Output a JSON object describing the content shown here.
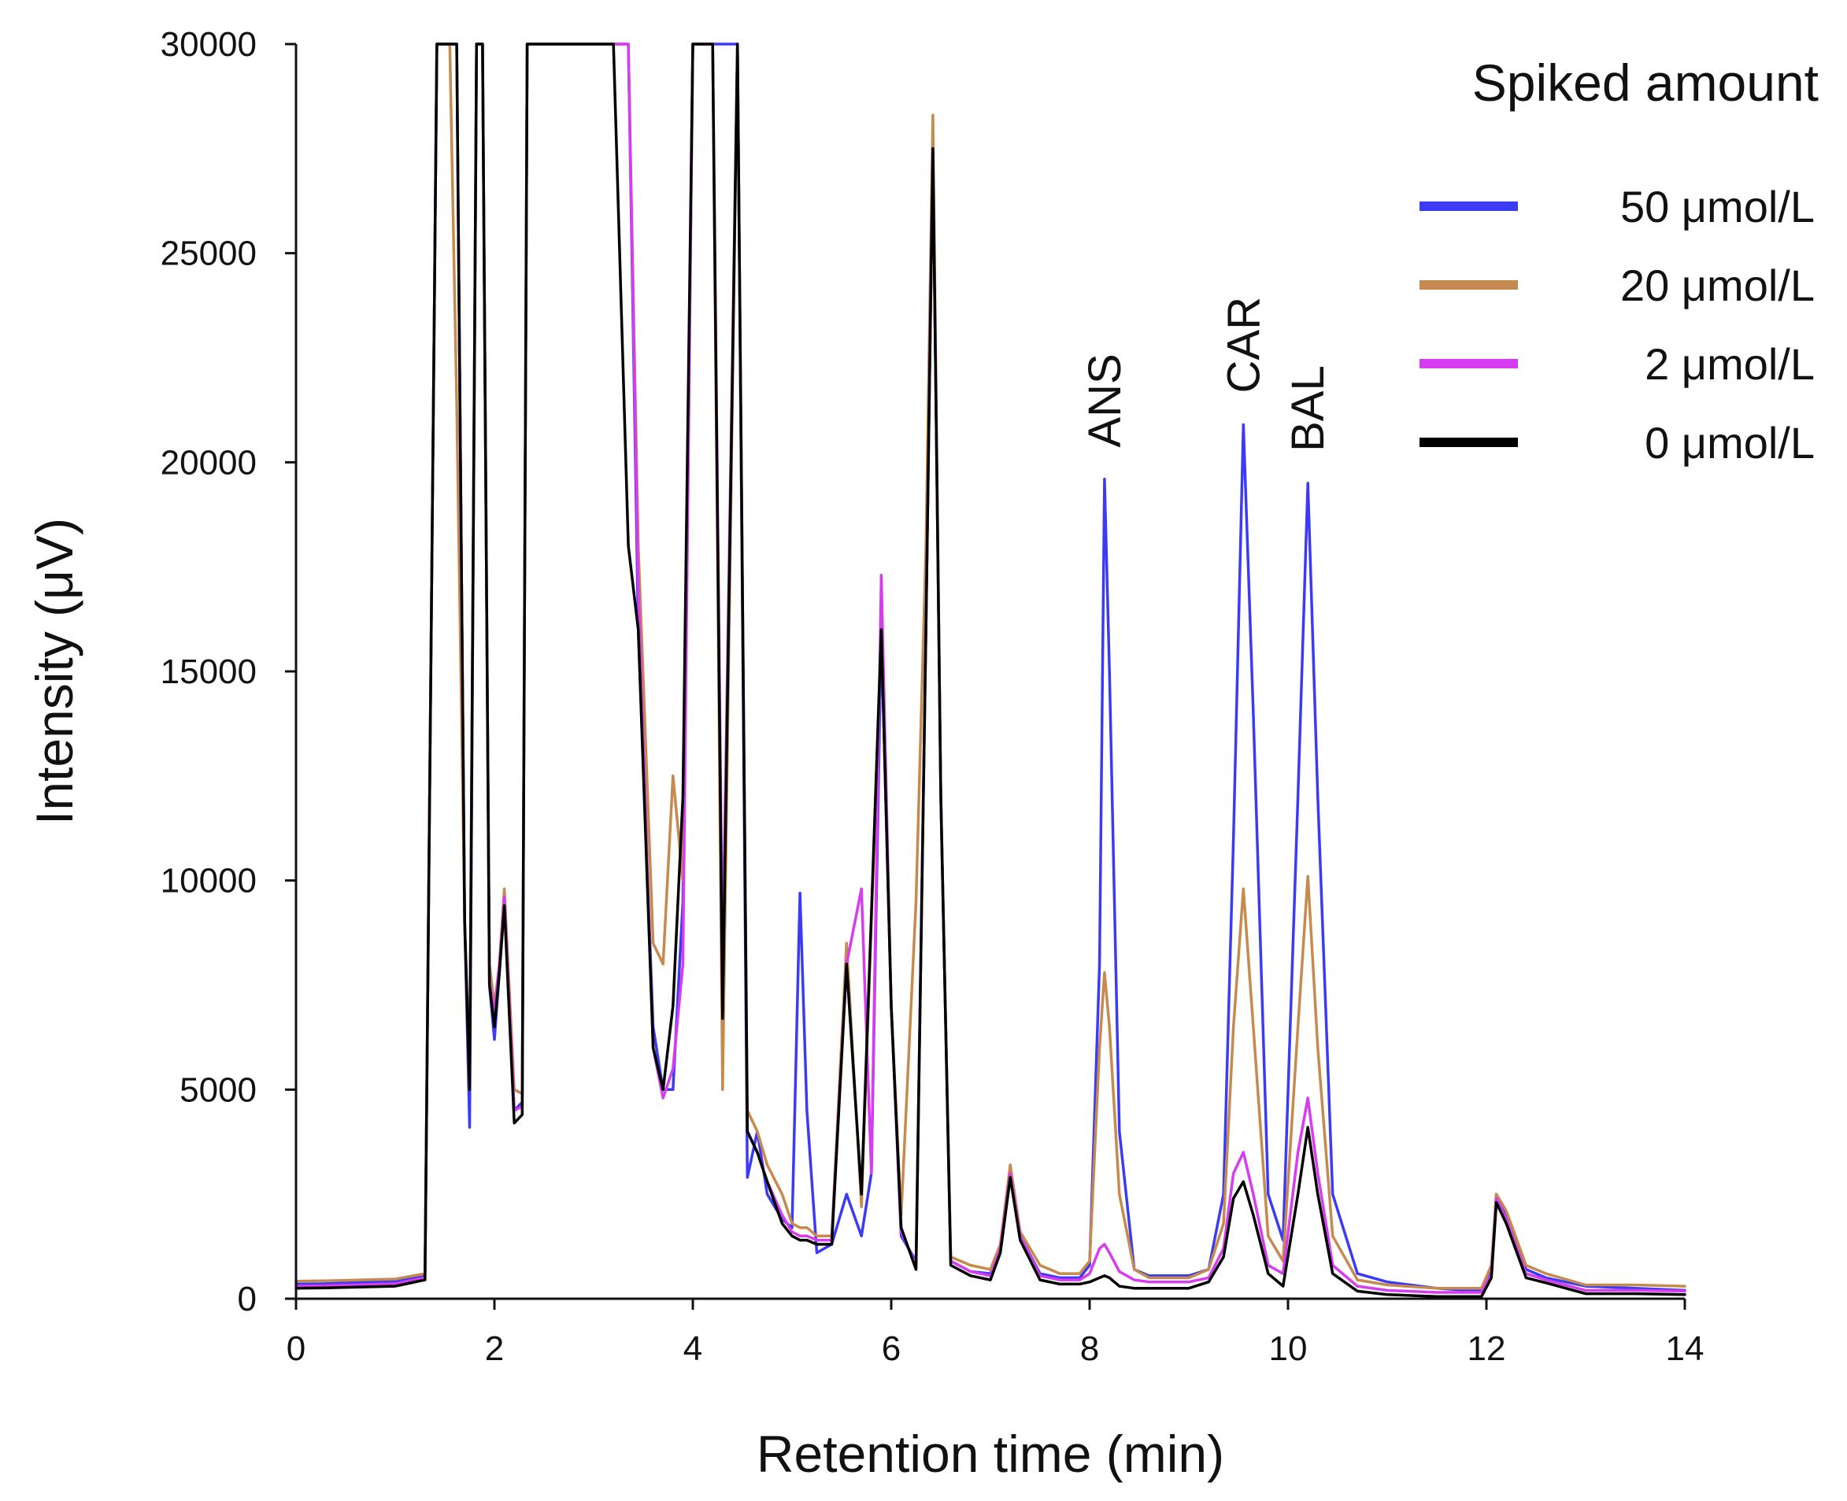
{
  "chart_data": {
    "type": "line",
    "xlabel": "Retention time (min)",
    "ylabel": "Intensity (μV)",
    "xlim": [
      0,
      14
    ],
    "ylim": [
      0,
      30000
    ],
    "xticks": [
      0,
      2,
      4,
      6,
      8,
      10,
      12,
      14
    ],
    "yticks": [
      0,
      5000,
      10000,
      15000,
      20000,
      25000,
      30000
    ],
    "grid": false,
    "legend": {
      "title": "Spiked amount",
      "placement": "top-right"
    },
    "annotations": [
      {
        "text": "ANS",
        "x": 8.15,
        "y": 19600
      },
      {
        "text": "CAR",
        "x": 9.55,
        "y": 20900
      },
      {
        "text": "BAL",
        "x": 10.2,
        "y": 19500
      }
    ],
    "series": [
      {
        "name": "50 μmol/L",
        "color": "#3b3bf5",
        "x": [
          0,
          0.3,
          1.0,
          1.3,
          1.42,
          1.55,
          1.62,
          1.7,
          1.75,
          1.82,
          1.88,
          1.95,
          2.0,
          2.05,
          2.1,
          2.2,
          2.28,
          2.33,
          2.38,
          2.45,
          3.1,
          3.2,
          3.35,
          3.45,
          3.6,
          3.7,
          3.8,
          3.9,
          4.0,
          4.1,
          4.2,
          4.3,
          4.45,
          4.55,
          4.65,
          4.75,
          4.9,
          5.0,
          5.08,
          5.15,
          5.25,
          5.4,
          5.55,
          5.7,
          5.8,
          5.9,
          6.0,
          6.1,
          6.25,
          6.35,
          6.42,
          6.5,
          6.6,
          6.8,
          7.0,
          7.1,
          7.2,
          7.3,
          7.5,
          7.7,
          7.9,
          8.0,
          8.1,
          8.15,
          8.2,
          8.3,
          8.45,
          8.6,
          8.8,
          9.0,
          9.2,
          9.35,
          9.45,
          9.55,
          9.65,
          9.8,
          9.95,
          10.1,
          10.2,
          10.3,
          10.45,
          10.7,
          11.0,
          11.5,
          11.8,
          11.95,
          12.05,
          12.1,
          12.2,
          12.4,
          12.6,
          13.0,
          13.5,
          14.0
        ],
        "y": [
          350,
          360,
          420,
          550,
          30000,
          30000,
          30000,
          9000,
          4100,
          30000,
          30000,
          7500,
          6200,
          7800,
          9500,
          4500,
          4700,
          30000,
          30000,
          30000,
          30000,
          30000,
          30000,
          16000,
          6500,
          5000,
          5000,
          9500,
          30000,
          30000,
          30000,
          30000,
          30000,
          2900,
          4000,
          2500,
          1900,
          1700,
          9700,
          4500,
          1100,
          1300,
          2500,
          1500,
          3000,
          16000,
          7000,
          1500,
          900,
          16000,
          27500,
          12000,
          900,
          650,
          600,
          1200,
          3100,
          1500,
          600,
          500,
          500,
          800,
          8000,
          19600,
          15000,
          4000,
          700,
          550,
          550,
          550,
          700,
          2500,
          11000,
          20900,
          14000,
          2500,
          1400,
          12000,
          19500,
          12000,
          2500,
          600,
          400,
          250,
          200,
          200,
          700,
          2500,
          2000,
          700,
          500,
          300,
          250,
          200
        ]
      },
      {
        "name": "20 μmol/L",
        "color": "#c68a4f",
        "x": [
          0,
          0.3,
          1.0,
          1.3,
          1.42,
          1.55,
          1.62,
          1.7,
          1.75,
          1.82,
          1.88,
          1.95,
          2.0,
          2.05,
          2.1,
          2.2,
          2.28,
          2.33,
          2.38,
          2.45,
          3.1,
          3.2,
          3.35,
          3.45,
          3.6,
          3.7,
          3.8,
          3.9,
          4.0,
          4.1,
          4.2,
          4.3,
          4.45,
          4.55,
          4.65,
          4.75,
          4.9,
          5.0,
          5.08,
          5.15,
          5.25,
          5.4,
          5.55,
          5.7,
          5.8,
          5.9,
          6.0,
          6.1,
          6.25,
          6.35,
          6.42,
          6.5,
          6.6,
          6.8,
          7.0,
          7.1,
          7.2,
          7.3,
          7.5,
          7.7,
          7.9,
          8.0,
          8.1,
          8.15,
          8.2,
          8.3,
          8.45,
          8.6,
          8.8,
          9.0,
          9.2,
          9.35,
          9.45,
          9.55,
          9.65,
          9.8,
          9.95,
          10.1,
          10.2,
          10.3,
          10.45,
          10.7,
          11.0,
          11.5,
          11.8,
          11.95,
          12.05,
          12.1,
          12.2,
          12.4,
          12.6,
          13.0,
          13.5,
          14.0
        ],
        "y": [
          420,
          430,
          470,
          600,
          30000,
          30000,
          21400,
          9000,
          5500,
          30000,
          30000,
          8000,
          7000,
          8000,
          9800,
          5000,
          4900,
          30000,
          30000,
          30000,
          30000,
          30000,
          30000,
          18000,
          8500,
          8000,
          12500,
          10000,
          30000,
          30000,
          30000,
          5000,
          30000,
          4500,
          4000,
          3200,
          2500,
          1800,
          1700,
          1700,
          1500,
          1500,
          8500,
          2200,
          9000,
          16000,
          7000,
          2000,
          9500,
          18000,
          28300,
          12000,
          1000,
          800,
          700,
          1300,
          3200,
          1600,
          800,
          600,
          600,
          900,
          6000,
          7800,
          6500,
          2500,
          700,
          500,
          500,
          500,
          700,
          1800,
          6500,
          9800,
          6500,
          1500,
          900,
          6500,
          10100,
          6000,
          1500,
          450,
          330,
          250,
          250,
          250,
          800,
          2500,
          2100,
          800,
          600,
          330,
          330,
          300
        ]
      },
      {
        "name": "2 μmol/L",
        "color": "#d63cf0",
        "x": [
          0,
          0.3,
          1.0,
          1.3,
          1.42,
          1.55,
          1.62,
          1.7,
          1.75,
          1.82,
          1.88,
          1.95,
          2.0,
          2.05,
          2.1,
          2.2,
          2.28,
          2.33,
          2.38,
          2.45,
          3.1,
          3.2,
          3.35,
          3.45,
          3.6,
          3.7,
          3.8,
          3.9,
          4.0,
          4.1,
          4.2,
          4.3,
          4.45,
          4.55,
          4.65,
          4.75,
          4.9,
          5.0,
          5.08,
          5.15,
          5.25,
          5.4,
          5.55,
          5.7,
          5.8,
          5.9,
          6.0,
          6.1,
          6.25,
          6.35,
          6.42,
          6.5,
          6.6,
          6.8,
          7.0,
          7.1,
          7.2,
          7.3,
          7.5,
          7.7,
          7.9,
          8.0,
          8.1,
          8.15,
          8.2,
          8.3,
          8.45,
          8.6,
          8.8,
          9.0,
          9.2,
          9.35,
          9.45,
          9.55,
          9.65,
          9.8,
          9.95,
          10.1,
          10.2,
          10.3,
          10.45,
          10.7,
          11.0,
          11.5,
          11.8,
          11.95,
          12.05,
          12.1,
          12.2,
          12.4,
          12.6,
          13.0,
          13.5,
          14.0
        ],
        "y": [
          300,
          310,
          360,
          500,
          30000,
          30000,
          30000,
          9000,
          5000,
          30000,
          30000,
          7600,
          6800,
          8000,
          9600,
          4500,
          4600,
          30000,
          30000,
          30000,
          30000,
          30000,
          30000,
          17000,
          6000,
          4800,
          5500,
          8000,
          30000,
          30000,
          30000,
          8000,
          30000,
          4000,
          3500,
          2800,
          2000,
          1600,
          1500,
          1500,
          1400,
          1400,
          8000,
          9800,
          3000,
          17300,
          7000,
          1600,
          800,
          16000,
          27500,
          12000,
          900,
          650,
          550,
          1200,
          3000,
          1500,
          550,
          450,
          450,
          600,
          1200,
          1300,
          1100,
          650,
          450,
          400,
          400,
          400,
          500,
          1200,
          3000,
          3500,
          2500,
          800,
          600,
          3500,
          4800,
          3000,
          800,
          300,
          200,
          150,
          150,
          150,
          600,
          2400,
          1900,
          600,
          450,
          200,
          200,
          180
        ]
      },
      {
        "name": "0 μmol/L",
        "color": "#000000",
        "x": [
          0,
          0.3,
          1.0,
          1.3,
          1.42,
          1.55,
          1.62,
          1.7,
          1.75,
          1.82,
          1.88,
          1.95,
          2.0,
          2.05,
          2.1,
          2.2,
          2.28,
          2.33,
          2.38,
          2.45,
          3.1,
          3.2,
          3.35,
          3.45,
          3.6,
          3.7,
          3.8,
          3.9,
          4.0,
          4.1,
          4.2,
          4.3,
          4.45,
          4.55,
          4.65,
          4.75,
          4.9,
          5.0,
          5.08,
          5.15,
          5.25,
          5.4,
          5.55,
          5.7,
          5.8,
          5.9,
          6.0,
          6.1,
          6.25,
          6.35,
          6.42,
          6.5,
          6.6,
          6.8,
          7.0,
          7.1,
          7.2,
          7.3,
          7.5,
          7.7,
          7.9,
          8.0,
          8.1,
          8.15,
          8.2,
          8.3,
          8.45,
          8.6,
          8.8,
          9.0,
          9.2,
          9.35,
          9.45,
          9.55,
          9.65,
          9.8,
          9.95,
          10.1,
          10.2,
          10.3,
          10.45,
          10.7,
          11.0,
          11.5,
          11.8,
          11.95,
          12.05,
          12.1,
          12.2,
          12.4,
          12.6,
          13.0,
          13.5,
          14.0
        ],
        "y": [
          250,
          260,
          300,
          450,
          30000,
          30000,
          30000,
          9000,
          5000,
          30000,
          30000,
          7500,
          6500,
          7800,
          9400,
          4200,
          4400,
          30000,
          30000,
          30000,
          30000,
          30000,
          18000,
          16000,
          6000,
          5000,
          7000,
          12000,
          30000,
          30000,
          30000,
          6700,
          30000,
          4000,
          3500,
          2800,
          1800,
          1500,
          1400,
          1400,
          1300,
          1300,
          8000,
          2500,
          9200,
          16000,
          7000,
          1700,
          700,
          16000,
          27500,
          12000,
          800,
          550,
          450,
          1100,
          2900,
          1400,
          450,
          350,
          350,
          400,
          500,
          550,
          500,
          300,
          250,
          250,
          250,
          250,
          400,
          1000,
          2400,
          2800,
          2000,
          600,
          300,
          2500,
          4100,
          2500,
          600,
          180,
          100,
          50,
          50,
          50,
          500,
          2300,
          1800,
          500,
          380,
          120,
          120,
          100
        ]
      }
    ]
  }
}
